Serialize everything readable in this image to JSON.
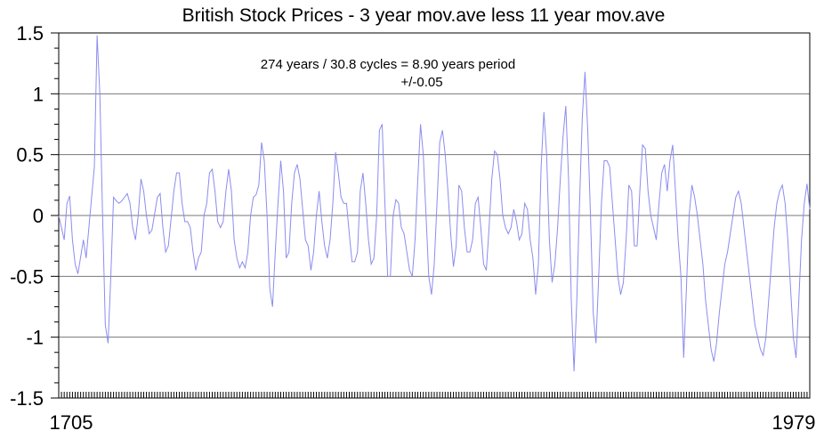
{
  "chart_data": {
    "type": "line",
    "title": "British Stock Prices - 3 year mov.ave less 11 year mov.ave",
    "xlabel": "",
    "ylabel": "",
    "xlim": [
      1705,
      1979
    ],
    "ylim": [
      -1.5,
      1.5
    ],
    "x_tick_labels": [
      "1705",
      "1979"
    ],
    "y_ticks": [
      1.5,
      1,
      0.5,
      0,
      -0.5,
      -1,
      -1.5
    ],
    "y_tick_labels": [
      "1.5",
      "1",
      "0.5",
      "0",
      "-0.5",
      "-1",
      "-1.5"
    ],
    "grid": true,
    "annotations": [
      "274 years / 30.8 cycles = 8.90 years period",
      "+/-0.05"
    ],
    "series": [
      {
        "color": "#8c8cf0",
        "points": [
          [
            1705,
            0.0
          ],
          [
            1707,
            -0.2
          ],
          [
            1708,
            0.1
          ],
          [
            1709,
            0.16
          ],
          [
            1710,
            -0.2
          ],
          [
            1711,
            -0.4
          ],
          [
            1712,
            -0.48
          ],
          [
            1714,
            -0.2
          ],
          [
            1715,
            -0.35
          ],
          [
            1716,
            -0.1
          ],
          [
            1718,
            0.4
          ],
          [
            1719,
            1.48
          ],
          [
            1720,
            1.0
          ],
          [
            1721,
            0.0
          ],
          [
            1722,
            -0.9
          ],
          [
            1723,
            -1.05
          ],
          [
            1724,
            -0.5
          ],
          [
            1725,
            0.15
          ],
          [
            1726,
            0.12
          ],
          [
            1727,
            0.1
          ],
          [
            1728,
            0.12
          ],
          [
            1729,
            0.15
          ],
          [
            1730,
            0.18
          ],
          [
            1731,
            0.1
          ],
          [
            1732,
            -0.1
          ],
          [
            1733,
            -0.2
          ],
          [
            1734,
            0.0
          ],
          [
            1735,
            0.3
          ],
          [
            1736,
            0.2
          ],
          [
            1737,
            0.0
          ],
          [
            1738,
            -0.15
          ],
          [
            1739,
            -0.12
          ],
          [
            1741,
            0.15
          ],
          [
            1742,
            0.18
          ],
          [
            1743,
            -0.1
          ],
          [
            1744,
            -0.3
          ],
          [
            1745,
            -0.25
          ],
          [
            1747,
            0.2
          ],
          [
            1748,
            0.35
          ],
          [
            1749,
            0.35
          ],
          [
            1750,
            0.1
          ],
          [
            1751,
            -0.05
          ],
          [
            1752,
            -0.05
          ],
          [
            1753,
            -0.1
          ],
          [
            1754,
            -0.3
          ],
          [
            1755,
            -0.45
          ],
          [
            1756,
            -0.35
          ],
          [
            1757,
            -0.3
          ],
          [
            1758,
            0.0
          ],
          [
            1759,
            0.1
          ],
          [
            1760,
            0.35
          ],
          [
            1761,
            0.38
          ],
          [
            1762,
            0.2
          ],
          [
            1763,
            -0.05
          ],
          [
            1764,
            -0.1
          ],
          [
            1765,
            -0.05
          ],
          [
            1766,
            0.2
          ],
          [
            1767,
            0.38
          ],
          [
            1768,
            0.2
          ],
          [
            1769,
            -0.2
          ],
          [
            1770,
            -0.35
          ],
          [
            1771,
            -0.43
          ],
          [
            1772,
            -0.38
          ],
          [
            1773,
            -0.43
          ],
          [
            1774,
            -0.3
          ],
          [
            1775,
            0.0
          ],
          [
            1776,
            0.15
          ],
          [
            1777,
            0.17
          ],
          [
            1778,
            0.25
          ],
          [
            1779,
            0.6
          ],
          [
            1780,
            0.45
          ],
          [
            1781,
            0.0
          ],
          [
            1782,
            -0.6
          ],
          [
            1783,
            -0.75
          ],
          [
            1784,
            -0.3
          ],
          [
            1785,
            0.1
          ],
          [
            1786,
            0.45
          ],
          [
            1787,
            0.2
          ],
          [
            1788,
            -0.35
          ],
          [
            1789,
            -0.3
          ],
          [
            1790,
            0.1
          ],
          [
            1791,
            0.35
          ],
          [
            1792,
            0.42
          ],
          [
            1793,
            0.3
          ],
          [
            1794,
            0.05
          ],
          [
            1795,
            -0.2
          ],
          [
            1796,
            -0.25
          ],
          [
            1797,
            -0.45
          ],
          [
            1798,
            -0.3
          ],
          [
            1799,
            0.0
          ],
          [
            1800,
            0.2
          ],
          [
            1801,
            -0.05
          ],
          [
            1802,
            -0.25
          ],
          [
            1803,
            -0.35
          ],
          [
            1804,
            -0.2
          ],
          [
            1805,
            0.1
          ],
          [
            1806,
            0.52
          ],
          [
            1807,
            0.35
          ],
          [
            1808,
            0.15
          ],
          [
            1809,
            0.1
          ],
          [
            1810,
            0.1
          ],
          [
            1811,
            -0.15
          ],
          [
            1812,
            -0.38
          ],
          [
            1813,
            -0.38
          ],
          [
            1814,
            -0.3
          ],
          [
            1815,
            0.2
          ],
          [
            1816,
            0.35
          ],
          [
            1817,
            0.1
          ],
          [
            1818,
            -0.2
          ],
          [
            1819,
            -0.4
          ],
          [
            1820,
            -0.35
          ],
          [
            1821,
            0.0
          ],
          [
            1822,
            0.7
          ],
          [
            1823,
            0.75
          ],
          [
            1824,
            0.1
          ],
          [
            1825,
            -0.5
          ],
          [
            1826,
            -0.5
          ],
          [
            1827,
            0.0
          ],
          [
            1828,
            0.13
          ],
          [
            1829,
            0.1
          ],
          [
            1830,
            -0.1
          ],
          [
            1831,
            -0.15
          ],
          [
            1832,
            -0.3
          ],
          [
            1833,
            -0.45
          ],
          [
            1834,
            -0.5
          ],
          [
            1835,
            -0.2
          ],
          [
            1836,
            0.3
          ],
          [
            1837,
            0.75
          ],
          [
            1838,
            0.5
          ],
          [
            1839,
            0.0
          ],
          [
            1840,
            -0.5
          ],
          [
            1841,
            -0.65
          ],
          [
            1842,
            -0.4
          ],
          [
            1843,
            0.1
          ],
          [
            1844,
            0.6
          ],
          [
            1845,
            0.7
          ],
          [
            1846,
            0.5
          ],
          [
            1847,
            0.2
          ],
          [
            1848,
            -0.15
          ],
          [
            1849,
            -0.42
          ],
          [
            1850,
            -0.25
          ],
          [
            1851,
            0.25
          ],
          [
            1852,
            0.2
          ],
          [
            1853,
            -0.1
          ],
          [
            1854,
            -0.3
          ],
          [
            1855,
            -0.3
          ],
          [
            1856,
            -0.2
          ],
          [
            1857,
            0.1
          ],
          [
            1858,
            0.15
          ],
          [
            1859,
            -0.1
          ],
          [
            1860,
            -0.4
          ],
          [
            1861,
            -0.45
          ],
          [
            1862,
            -0.1
          ],
          [
            1863,
            0.3
          ],
          [
            1864,
            0.53
          ],
          [
            1865,
            0.5
          ],
          [
            1866,
            0.3
          ],
          [
            1867,
            0.0
          ],
          [
            1868,
            -0.1
          ],
          [
            1869,
            -0.15
          ],
          [
            1870,
            -0.1
          ],
          [
            1871,
            0.05
          ],
          [
            1872,
            -0.05
          ],
          [
            1873,
            -0.2
          ],
          [
            1874,
            -0.15
          ],
          [
            1875,
            0.1
          ],
          [
            1876,
            0.05
          ],
          [
            1877,
            -0.2
          ],
          [
            1878,
            -0.35
          ],
          [
            1879,
            -0.65
          ],
          [
            1880,
            -0.4
          ],
          [
            1881,
            0.4
          ],
          [
            1882,
            0.85
          ],
          [
            1883,
            0.5
          ],
          [
            1884,
            -0.2
          ],
          [
            1885,
            -0.55
          ],
          [
            1886,
            -0.4
          ],
          [
            1887,
            -0.1
          ],
          [
            1888,
            0.3
          ],
          [
            1889,
            0.65
          ],
          [
            1890,
            0.9
          ],
          [
            1891,
            0.3
          ],
          [
            1892,
            -0.7
          ],
          [
            1893,
            -1.28
          ],
          [
            1894,
            -0.7
          ],
          [
            1895,
            0.1
          ],
          [
            1896,
            0.8
          ],
          [
            1897,
            1.18
          ],
          [
            1898,
            0.7
          ],
          [
            1899,
            0.0
          ],
          [
            1900,
            -0.8
          ],
          [
            1901,
            -1.05
          ],
          [
            1902,
            -0.5
          ],
          [
            1903,
            0.1
          ],
          [
            1904,
            0.45
          ],
          [
            1905,
            0.45
          ],
          [
            1906,
            0.4
          ],
          [
            1907,
            0.1
          ],
          [
            1908,
            -0.2
          ],
          [
            1909,
            -0.5
          ],
          [
            1910,
            -0.65
          ],
          [
            1911,
            -0.55
          ],
          [
            1912,
            -0.2
          ],
          [
            1913,
            0.25
          ],
          [
            1914,
            0.2
          ],
          [
            1915,
            -0.25
          ],
          [
            1916,
            -0.25
          ],
          [
            1917,
            0.2
          ],
          [
            1918,
            0.58
          ],
          [
            1919,
            0.55
          ],
          [
            1920,
            0.2
          ],
          [
            1921,
            0.0
          ],
          [
            1922,
            -0.1
          ],
          [
            1923,
            -0.2
          ],
          [
            1924,
            0.1
          ],
          [
            1925,
            0.35
          ],
          [
            1926,
            0.42
          ],
          [
            1927,
            0.2
          ],
          [
            1928,
            0.45
          ],
          [
            1929,
            0.58
          ],
          [
            1930,
            0.2
          ],
          [
            1931,
            -0.2
          ],
          [
            1932,
            -0.5
          ],
          [
            1933,
            -1.17
          ],
          [
            1934,
            -0.6
          ],
          [
            1935,
            0.0
          ],
          [
            1936,
            0.25
          ],
          [
            1937,
            0.15
          ],
          [
            1938,
            0.0
          ],
          [
            1939,
            -0.2
          ],
          [
            1940,
            -0.4
          ],
          [
            1941,
            -0.7
          ],
          [
            1942,
            -0.9
          ],
          [
            1943,
            -1.1
          ],
          [
            1944,
            -1.2
          ],
          [
            1945,
            -1.05
          ],
          [
            1946,
            -0.8
          ],
          [
            1947,
            -0.6
          ],
          [
            1948,
            -0.4
          ],
          [
            1949,
            -0.3
          ],
          [
            1950,
            -0.15
          ],
          [
            1951,
            0.0
          ],
          [
            1952,
            0.15
          ],
          [
            1953,
            0.2
          ],
          [
            1954,
            0.1
          ],
          [
            1955,
            -0.1
          ],
          [
            1956,
            -0.3
          ],
          [
            1957,
            -0.5
          ],
          [
            1958,
            -0.7
          ],
          [
            1959,
            -0.9
          ],
          [
            1960,
            -1.0
          ],
          [
            1961,
            -1.1
          ],
          [
            1962,
            -1.15
          ],
          [
            1963,
            -1.0
          ],
          [
            1964,
            -0.7
          ],
          [
            1965,
            -0.4
          ],
          [
            1966,
            -0.1
          ],
          [
            1967,
            0.1
          ],
          [
            1968,
            0.2
          ],
          [
            1969,
            0.25
          ],
          [
            1970,
            0.1
          ],
          [
            1971,
            -0.2
          ],
          [
            1972,
            -0.6
          ],
          [
            1973,
            -1.0
          ],
          [
            1974,
            -1.17
          ],
          [
            1975,
            -0.7
          ],
          [
            1976,
            -0.2
          ],
          [
            1977,
            0.1
          ],
          [
            1978,
            0.26
          ],
          [
            1979,
            0.05
          ]
        ]
      }
    ]
  }
}
